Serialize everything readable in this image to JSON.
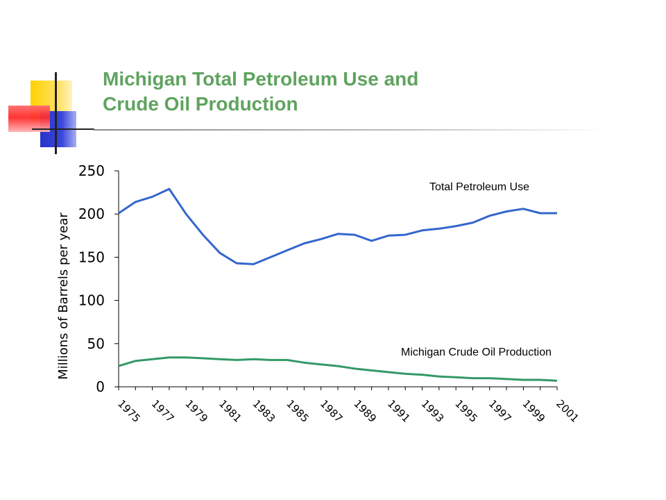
{
  "slide": {
    "title_line1": "Michigan Total Petroleum Use and",
    "title_line2": "Crude Oil Production",
    "title_color": "#5fa35f"
  },
  "chart_data": {
    "type": "line",
    "ylabel": "Millions of Barrels per year",
    "xlabel": "",
    "ylim": [
      0,
      250
    ],
    "yticks": [
      0,
      50,
      100,
      150,
      200,
      250
    ],
    "x": [
      1975,
      1976,
      1977,
      1978,
      1979,
      1980,
      1981,
      1982,
      1983,
      1984,
      1985,
      1986,
      1987,
      1988,
      1989,
      1990,
      1991,
      1992,
      1993,
      1994,
      1995,
      1996,
      1997,
      1998,
      1999,
      2000,
      2001
    ],
    "xtick_labels": [
      "1975",
      "1977",
      "1979",
      "1981",
      "1983",
      "1985",
      "1987",
      "1989",
      "1991",
      "1993",
      "1995",
      "1997",
      "1999",
      "2001"
    ],
    "grid": false,
    "series": [
      {
        "name": "Total Petroleum Use",
        "color": "#3366cc",
        "values": [
          201,
          214,
          220,
          229,
          200,
          176,
          155,
          143,
          142,
          150,
          158,
          166,
          171,
          177,
          176,
          169,
          175,
          176,
          181,
          183,
          186,
          190,
          198,
          203,
          206,
          201,
          201
        ]
      },
      {
        "name": "Michigan Crude Oil Production",
        "color": "#339966",
        "values": [
          24,
          30,
          32,
          34,
          34,
          33,
          32,
          31,
          32,
          31,
          31,
          28,
          26,
          24,
          21,
          19,
          17,
          15,
          14,
          12,
          11,
          10,
          10,
          9,
          8,
          8,
          7
        ]
      }
    ]
  }
}
